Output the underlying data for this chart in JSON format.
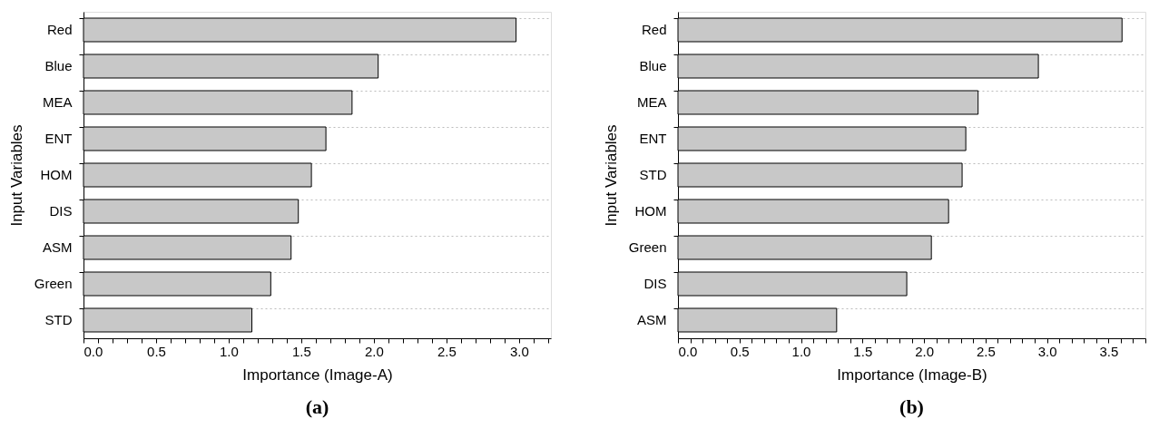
{
  "chart_data": [
    {
      "type": "bar",
      "orientation": "horizontal",
      "xlabel": "Importance (Image-A)",
      "ylabel": "Input Variables",
      "categories": [
        "Red",
        "Blue",
        "MEA",
        "ENT",
        "HOM",
        "DIS",
        "ASM",
        "Green",
        "STD"
      ],
      "values": [
        2.98,
        2.03,
        1.85,
        1.67,
        1.57,
        1.48,
        1.43,
        1.29,
        1.16
      ],
      "color": "#c8c8c8",
      "xlim": [
        0,
        3.22
      ],
      "xticks": [
        {
          "value": 0,
          "label": "0.0"
        },
        {
          "value": 0.1,
          "label": null
        },
        {
          "value": 0.2,
          "label": null
        },
        {
          "value": 0.3,
          "label": null
        },
        {
          "value": 0.4,
          "label": null
        },
        0.5,
        {
          "value": 0.6,
          "label": null
        },
        {
          "value": 0.7,
          "label": null
        },
        {
          "value": 0.8,
          "label": null
        },
        {
          "value": 0.9,
          "label": null
        },
        {
          "value": 1,
          "label": "1.0"
        },
        {
          "value": 1.1,
          "label": null
        },
        {
          "value": 1.2,
          "label": null
        },
        {
          "value": 1.3,
          "label": null
        },
        {
          "value": 1.4,
          "label": null
        },
        1.5,
        {
          "value": 1.6,
          "label": null
        },
        {
          "value": 1.7,
          "label": null
        },
        {
          "value": 1.8,
          "label": null
        },
        {
          "value": 1.9,
          "label": null
        },
        {
          "value": 2,
          "label": "2.0"
        },
        {
          "value": 2.1,
          "label": null
        },
        {
          "value": 2.2,
          "label": null
        },
        {
          "value": 2.3,
          "label": null
        },
        {
          "value": 2.4,
          "label": null
        },
        2.5,
        {
          "value": 2.6,
          "label": null
        },
        {
          "value": 2.7,
          "label": null
        },
        {
          "value": 2.8,
          "label": null
        },
        {
          "value": 2.9,
          "label": null
        },
        {
          "value": 3,
          "label": "3.0"
        },
        {
          "value": 3.1,
          "label": null
        },
        {
          "value": 3.2,
          "label": null
        }
      ],
      "grid": "y",
      "annotations": [
        "(a)"
      ]
    },
    {
      "type": "bar",
      "orientation": "horizontal",
      "xlabel": "Importance (Image-B)",
      "ylabel": "Input Variables",
      "categories": [
        "Red",
        "Blue",
        "MEA",
        "ENT",
        "STD",
        "HOM",
        "Green",
        "DIS",
        "ASM"
      ],
      "values": [
        3.61,
        2.93,
        2.44,
        2.34,
        2.31,
        2.2,
        2.06,
        1.86,
        1.29
      ],
      "color": "#c8c8c8",
      "xlim": [
        0,
        3.8
      ],
      "xticks": [
        {
          "value": 0,
          "label": "0.0"
        },
        {
          "value": 0.1,
          "label": null
        },
        {
          "value": 0.2,
          "label": null
        },
        {
          "value": 0.3,
          "label": null
        },
        {
          "value": 0.4,
          "label": null
        },
        0.5,
        {
          "value": 0.6,
          "label": null
        },
        {
          "value": 0.7,
          "label": null
        },
        {
          "value": 0.8,
          "label": null
        },
        {
          "value": 0.9,
          "label": null
        },
        {
          "value": 1,
          "label": "1.0"
        },
        {
          "value": 1.1,
          "label": null
        },
        {
          "value": 1.2,
          "label": null
        },
        {
          "value": 1.3,
          "label": null
        },
        {
          "value": 1.4,
          "label": null
        },
        1.5,
        {
          "value": 1.6,
          "label": null
        },
        {
          "value": 1.7,
          "label": null
        },
        {
          "value": 1.8,
          "label": null
        },
        {
          "value": 1.9,
          "label": null
        },
        {
          "value": 2,
          "label": "2.0"
        },
        {
          "value": 2.1,
          "label": null
        },
        {
          "value": 2.2,
          "label": null
        },
        {
          "value": 2.3,
          "label": null
        },
        {
          "value": 2.4,
          "label": null
        },
        2.5,
        {
          "value": 2.6,
          "label": null
        },
        {
          "value": 2.7,
          "label": null
        },
        {
          "value": 2.8,
          "label": null
        },
        {
          "value": 2.9,
          "label": null
        },
        {
          "value": 3,
          "label": "3.0"
        },
        {
          "value": 3.1,
          "label": null
        },
        {
          "value": 3.2,
          "label": null
        },
        {
          "value": 3.3,
          "label": null
        },
        {
          "value": 3.4,
          "label": null
        },
        3.5,
        {
          "value": 3.6,
          "label": null
        },
        {
          "value": 3.7,
          "label": null
        },
        {
          "value": 3.8,
          "label": null
        }
      ],
      "grid": "y",
      "annotations": [
        "(b)"
      ]
    }
  ]
}
